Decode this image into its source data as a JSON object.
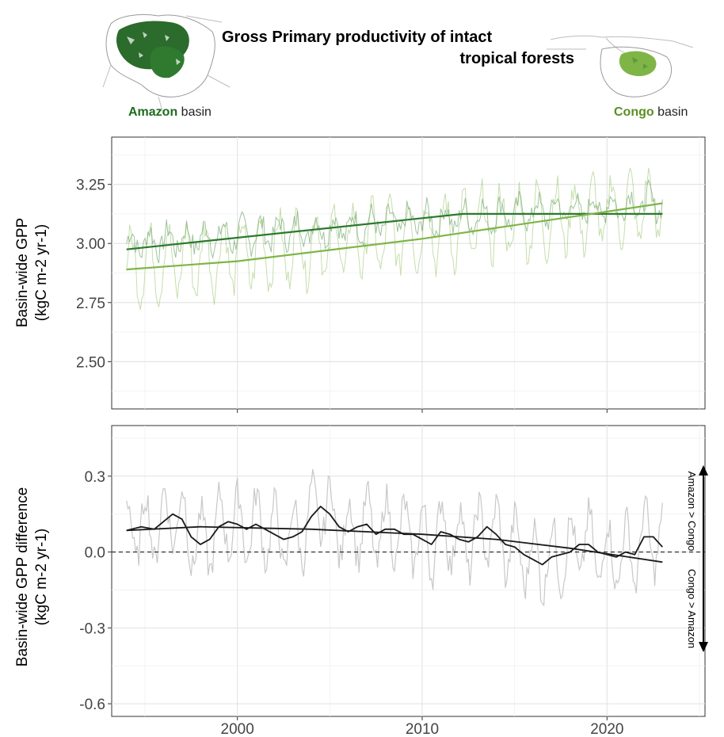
{
  "header": {
    "title_line1": "Gross Primary productivity of intact",
    "title_line2": "tropical forests",
    "amazon_name": "Amazon",
    "amazon_suffix": " basin",
    "congo_name": "Congo",
    "congo_suffix": " basin"
  },
  "colors": {
    "amazon": "#2b7a2b",
    "congo": "#7fb547",
    "amazon_label": "#1e6b1e",
    "congo_label": "#5b8f22",
    "difference": "#1a1a1a",
    "difference_raw": "#c8c8c8"
  },
  "chart_data": [
    {
      "type": "line",
      "ylabel_line1": "Basin-wide GPP",
      "ylabel_line2": "(kgC m-2 yr-1)",
      "xlim": [
        1993.2,
        2025.3
      ],
      "ylim": [
        2.3,
        3.45
      ],
      "yticks": [
        2.5,
        2.75,
        3.0,
        3.25
      ],
      "ytick_labels": [
        "2.50",
        "2.75",
        "3.00",
        "3.25"
      ],
      "xticks": [
        2000,
        2010,
        2020
      ],
      "grid": true,
      "series": [
        {
          "key": "amazon",
          "kind": "raw",
          "start": 1994.0,
          "end": 2023.0,
          "base": 3.0,
          "slope": 0.006,
          "amp": 0.05,
          "noise": 0.07
        },
        {
          "key": "congo",
          "kind": "raw",
          "start": 1994.0,
          "end": 2023.0,
          "base": 2.9,
          "slope": 0.009,
          "amp": 0.14,
          "noise": 0.09
        },
        {
          "key": "amazon",
          "kind": "trend",
          "x": [
            1994.0,
            2012.2,
            2023.0
          ],
          "y": [
            2.975,
            3.125,
            3.125
          ]
        },
        {
          "key": "congo",
          "kind": "trend",
          "x": [
            1994.0,
            2000.0,
            2010.0,
            2020.0,
            2023.0
          ],
          "y": [
            2.89,
            2.925,
            3.02,
            3.135,
            3.17
          ]
        }
      ]
    },
    {
      "type": "line",
      "ylabel_line1": "Basin-wide GPP difference",
      "ylabel_line2": "(kgC m-2 yr-1)",
      "xlim": [
        1993.2,
        2025.3
      ],
      "ylim": [
        -0.65,
        0.5
      ],
      "yticks": [
        -0.6,
        -0.3,
        0.0,
        0.3
      ],
      "ytick_labels": [
        "-0.6",
        "-0.3",
        "0.0",
        "0.3"
      ],
      "xticks": [
        2000,
        2010,
        2020
      ],
      "xtick_labels": [
        "2000",
        "2010",
        "2020"
      ],
      "grid": true,
      "zero_line": true,
      "annotation_top": "Amazon > Congo",
      "annotation_bottom": "Congo > Amazon",
      "smoothed": {
        "x": [
          1994.0,
          1994.8,
          1995.5,
          1996.0,
          1996.5,
          1997.0,
          1997.5,
          1998.0,
          1998.5,
          1999.0,
          1999.5,
          2000.0,
          2000.5,
          2001.0,
          2001.5,
          2002.0,
          2002.5,
          2003.0,
          2003.5,
          2004.0,
          2004.5,
          2005.0,
          2005.5,
          2006.0,
          2006.5,
          2007.0,
          2007.5,
          2008.0,
          2008.5,
          2009.0,
          2009.5,
          2010.0,
          2010.5,
          2011.0,
          2011.5,
          2012.0,
          2012.5,
          2013.0,
          2013.5,
          2014.0,
          2014.5,
          2015.0,
          2015.5,
          2016.0,
          2016.5,
          2017.0,
          2017.5,
          2018.0,
          2018.5,
          2019.0,
          2019.5,
          2020.0,
          2020.5,
          2021.0,
          2021.5,
          2022.0,
          2022.5,
          2023.0
        ],
        "y": [
          0.085,
          0.1,
          0.09,
          0.12,
          0.15,
          0.13,
          0.06,
          0.03,
          0.05,
          0.1,
          0.12,
          0.11,
          0.09,
          0.11,
          0.09,
          0.07,
          0.05,
          0.06,
          0.08,
          0.14,
          0.18,
          0.15,
          0.1,
          0.08,
          0.1,
          0.11,
          0.07,
          0.09,
          0.09,
          0.07,
          0.07,
          0.05,
          0.03,
          0.08,
          0.07,
          0.05,
          0.04,
          0.06,
          0.1,
          0.07,
          0.03,
          0.02,
          -0.01,
          -0.03,
          -0.05,
          -0.02,
          -0.01,
          0.0,
          0.03,
          0.03,
          0.0,
          -0.01,
          -0.02,
          0.0,
          -0.01,
          0.06,
          0.06,
          0.02
        ]
      },
      "trend": {
        "x": [
          1994.0,
          1998.0,
          2004.0,
          2010.0,
          2014.0,
          2018.0,
          2023.0
        ],
        "y": [
          0.085,
          0.1,
          0.09,
          0.07,
          0.05,
          0.015,
          -0.04
        ]
      },
      "raw": {
        "start": 1994.0,
        "end": 2023.0,
        "amp": 0.13,
        "noise": 0.09
      }
    }
  ]
}
